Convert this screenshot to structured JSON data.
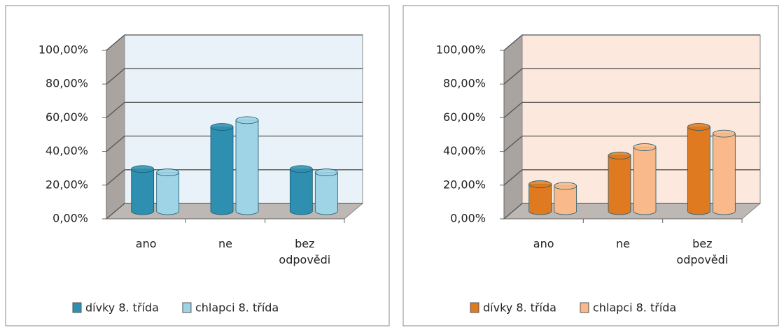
{
  "chart_data": [
    {
      "type": "bar3d",
      "categories": [
        "ano",
        "ne",
        "bez odpovědi"
      ],
      "series": [
        {
          "name": "dívky 8. třída",
          "color": "#2e8fb0",
          "values": [
            25,
            50,
            25
          ]
        },
        {
          "name": "chlapci 8. třída",
          "color": "#9fd3e6",
          "values": [
            23,
            54,
            23
          ]
        }
      ],
      "ylim": [
        0,
        100
      ],
      "yticks": [
        {
          "value": 0,
          "label": "0,00%"
        },
        {
          "value": 20,
          "label": "20,00%"
        },
        {
          "value": 40,
          "label": "40,00%"
        },
        {
          "value": 60,
          "label": "60,00%"
        },
        {
          "value": 80,
          "label": "80,00%"
        },
        {
          "value": 100,
          "label": "100,00%"
        }
      ],
      "grid": true,
      "wall_color": "#e8f2f8",
      "legend": "bottom"
    },
    {
      "type": "bar3d",
      "categories": [
        "ano",
        "ne",
        "bez odpovědi"
      ],
      "series": [
        {
          "name": "dívky 8. třída",
          "color": "#e07a20",
          "values": [
            16,
            33,
            50
          ]
        },
        {
          "name": "chlapci 8. třída",
          "color": "#f9b98a",
          "values": [
            15,
            38,
            46
          ]
        }
      ],
      "ylim": [
        0,
        100
      ],
      "yticks": [
        {
          "value": 0,
          "label": "0,00%"
        },
        {
          "value": 20,
          "label": "20,00%"
        },
        {
          "value": 40,
          "label": "40,00%"
        },
        {
          "value": 60,
          "label": "60,00%"
        },
        {
          "value": 80,
          "label": "80,00%"
        },
        {
          "value": 100,
          "label": "100,00%"
        }
      ],
      "grid": true,
      "wall_color": "#fce8dc",
      "legend": "bottom"
    }
  ]
}
